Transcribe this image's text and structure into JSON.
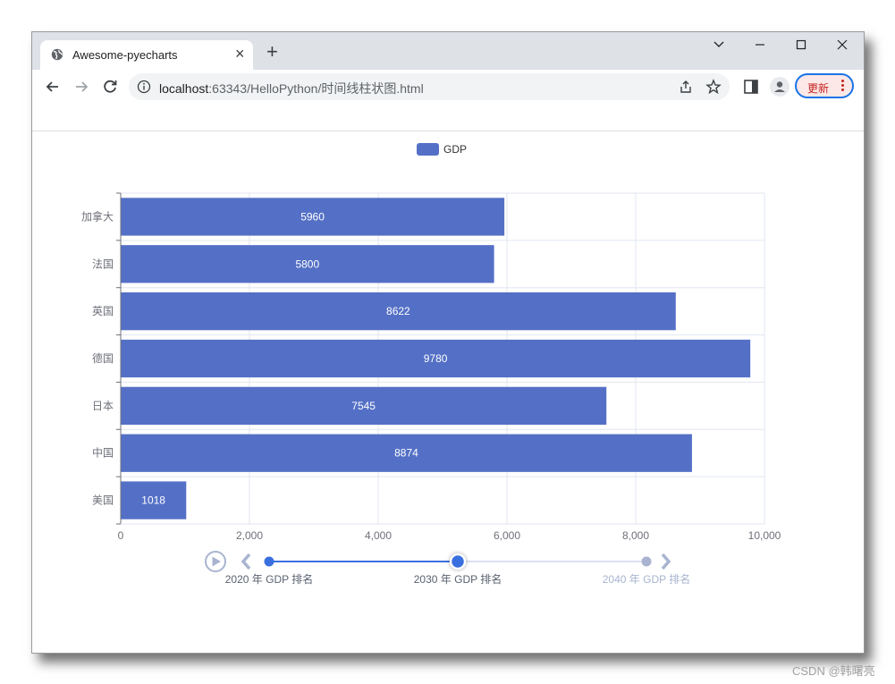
{
  "browser": {
    "tab_title": "Awesome-pyecharts",
    "url_host": "localhost",
    "url_rest": ":63343/HelloPython/时间线柱状图.html",
    "update_label": "更新",
    "colors": {
      "tabstrip": "#dee1e6",
      "update_border": "#1a73e8",
      "update_text": "#c5221f"
    }
  },
  "chart_data": {
    "type": "bar",
    "orientation": "horizontal",
    "categories": [
      "加拿大",
      "法国",
      "英国",
      "德国",
      "日本",
      "中国",
      "美国"
    ],
    "series": [
      {
        "name": "GDP",
        "values": [
          5960,
          5800,
          8622,
          9780,
          7545,
          8874,
          1018
        ],
        "color": "#5470c6"
      }
    ],
    "xlim": [
      0,
      10000
    ],
    "x_ticks": [
      0,
      2000,
      4000,
      6000,
      8000,
      10000
    ],
    "x_tick_labels": [
      "0",
      "2,000",
      "4,000",
      "6,000",
      "8,000",
      "10,000"
    ],
    "grid": true,
    "legend": "top-center",
    "data_labels": "inside"
  },
  "timeline": {
    "items": [
      "2020 年 GDP 排名",
      "2030 年 GDP 排名",
      "2040 年 GDP 排名"
    ],
    "current_index": 1,
    "colors": {
      "active": "#3a6fe0",
      "inactive": "#a8b4cf"
    }
  },
  "watermark": "CSDN @韩曙亮"
}
